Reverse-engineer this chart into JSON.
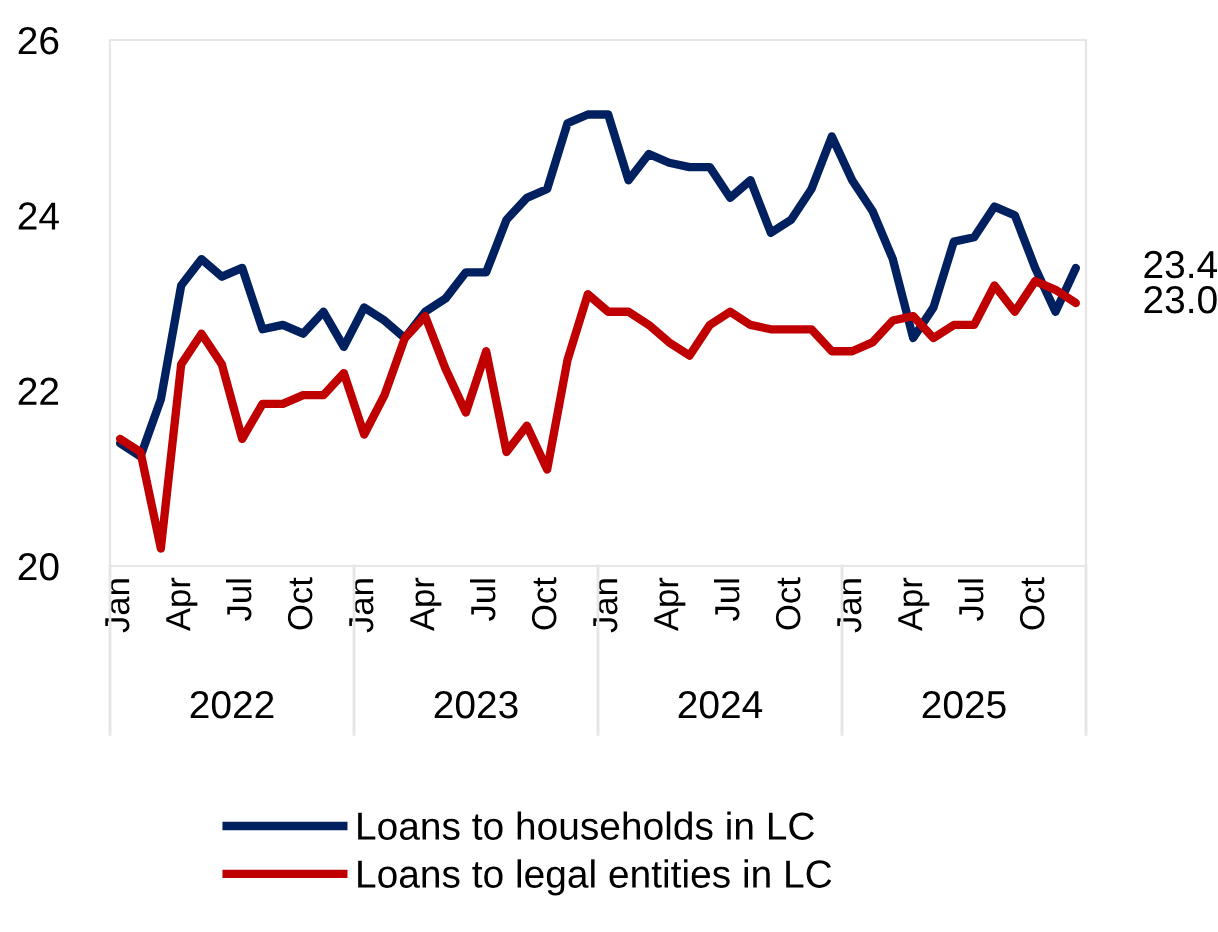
{
  "chart_data": {
    "type": "line",
    "categories": [
      "Jan",
      null,
      null,
      "Apr",
      null,
      null,
      "Jul",
      null,
      null,
      "Oct",
      null,
      null,
      "Jan",
      null,
      null,
      "Apr",
      null,
      null,
      "Jul",
      null,
      null,
      "Oct",
      null,
      null,
      "Jan",
      null,
      null,
      "Apr",
      null,
      null,
      "Jul",
      null,
      null,
      "Oct",
      null,
      null,
      "Jan",
      null,
      null,
      "Apr",
      null,
      null,
      "Jul",
      null,
      null,
      "Oct",
      null,
      null
    ],
    "annotations": [
      "2022",
      "2023",
      "2024",
      "2025"
    ],
    "ylim": [
      20,
      26
    ],
    "yticks": [
      20,
      22,
      24,
      26
    ],
    "grid": false,
    "legend": "bottom",
    "line_style": "solid",
    "marker": "none",
    "series": [
      {
        "name": "Loans to households in LC",
        "color": "#002060",
        "values": [
          21.4,
          21.25,
          21.9,
          23.2,
          23.5,
          23.3,
          23.4,
          22.7,
          22.75,
          22.65,
          22.9,
          22.5,
          22.95,
          22.8,
          22.6,
          22.9,
          23.05,
          23.35,
          23.35,
          23.95,
          24.2,
          24.3,
          25.05,
          25.15,
          25.15,
          24.4,
          24.7,
          24.6,
          24.55,
          24.55,
          24.2,
          24.4,
          23.8,
          23.95,
          24.3,
          24.9,
          24.4,
          24.05,
          23.5,
          22.6,
          22.95,
          23.7,
          23.75,
          24.1,
          24.0,
          23.4,
          22.9,
          23.4
        ],
        "value_labels": [
          null,
          null,
          null,
          null,
          null,
          null,
          null,
          null,
          null,
          null,
          null,
          null,
          null,
          null,
          null,
          null,
          null,
          null,
          null,
          null,
          null,
          null,
          null,
          null,
          null,
          null,
          null,
          null,
          null,
          null,
          null,
          null,
          null,
          null,
          null,
          null,
          null,
          null,
          null,
          null,
          null,
          null,
          null,
          null,
          null,
          null,
          null,
          "23.4"
        ]
      },
      {
        "name": "Loans to legal entities in LC",
        "color": "#c00000",
        "values": [
          21.45,
          21.3,
          20.2,
          22.3,
          22.65,
          22.3,
          21.45,
          21.85,
          21.85,
          21.95,
          21.95,
          22.2,
          21.5,
          21.95,
          22.6,
          22.85,
          22.25,
          21.75,
          22.45,
          21.3,
          21.6,
          21.1,
          22.35,
          23.1,
          22.9,
          22.9,
          22.75,
          22.55,
          22.4,
          22.75,
          22.9,
          22.75,
          22.7,
          22.7,
          22.7,
          22.45,
          22.45,
          22.55,
          22.8,
          22.85,
          22.6,
          22.75,
          22.75,
          23.2,
          22.9,
          23.25,
          23.15,
          23.0
        ],
        "value_labels": [
          null,
          null,
          null,
          null,
          null,
          null,
          null,
          null,
          null,
          null,
          null,
          null,
          null,
          null,
          null,
          null,
          null,
          null,
          null,
          null,
          null,
          null,
          null,
          null,
          null,
          null,
          null,
          null,
          null,
          null,
          null,
          null,
          null,
          null,
          null,
          null,
          null,
          null,
          null,
          null,
          null,
          null,
          null,
          null,
          null,
          null,
          null,
          "23.0"
        ]
      }
    ]
  }
}
